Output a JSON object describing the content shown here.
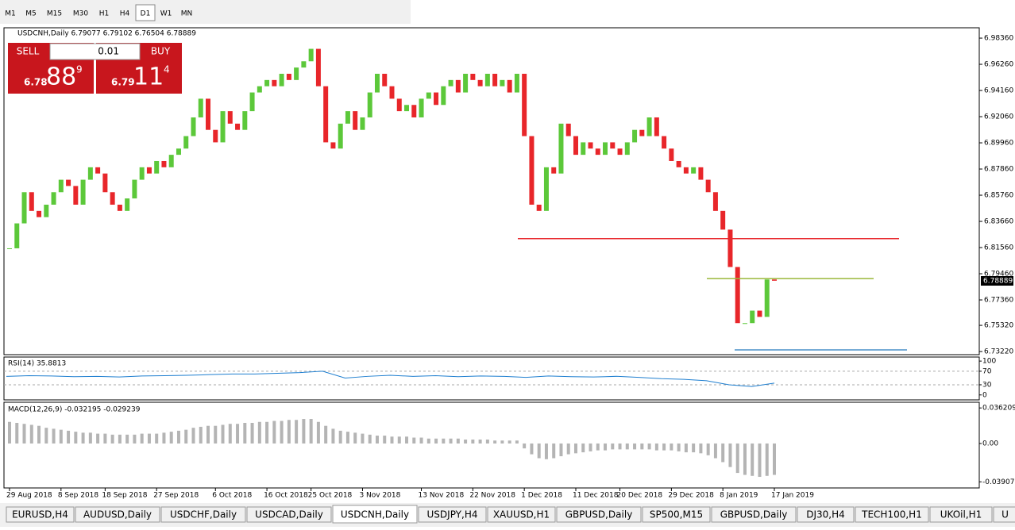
{
  "toolbar": {
    "timeframes": [
      "M1",
      "M5",
      "M15",
      "M30",
      "H1",
      "H4",
      "D1",
      "W1",
      "MN"
    ],
    "active": 6
  },
  "trade_panel": {
    "sell": "SELL",
    "buy": "BUY",
    "lot": "0.01",
    "bid_big": "6.78",
    "bid_pips": "88",
    "bid_frac": "9",
    "ask_big": "6.79",
    "ask_pips": "11",
    "ask_frac": "4"
  },
  "chart_data": {
    "type": "candlestick",
    "header": "USDCNH,Daily  6.79077 6.79102 6.76504 6.78889",
    "up_color": "#5cc83a",
    "down_color": "#e8262a",
    "closes": [
      6.815,
      6.835,
      6.86,
      6.845,
      6.84,
      6.85,
      6.86,
      6.87,
      6.865,
      6.85,
      6.87,
      6.88,
      6.875,
      6.86,
      6.85,
      6.845,
      6.855,
      6.87,
      6.88,
      6.875,
      6.885,
      6.88,
      6.89,
      6.895,
      6.905,
      6.92,
      6.935,
      6.91,
      6.9,
      6.925,
      6.915,
      6.91,
      6.925,
      6.94,
      6.945,
      6.95,
      6.945,
      6.955,
      6.95,
      6.96,
      6.965,
      6.975,
      6.945,
      6.9,
      6.895,
      6.915,
      6.925,
      6.91,
      6.92,
      6.94,
      6.955,
      6.945,
      6.935,
      6.925,
      6.93,
      6.92,
      6.935,
      6.94,
      6.93,
      6.945,
      6.95,
      6.94,
      6.955,
      6.95,
      6.945,
      6.955,
      6.945,
      6.95,
      6.94,
      6.955,
      6.905,
      6.85,
      6.845,
      6.88,
      6.875,
      6.915,
      6.905,
      6.89,
      6.9,
      6.895,
      6.89,
      6.9,
      6.895,
      6.89,
      6.9,
      6.91,
      6.905,
      6.92,
      6.905,
      6.895,
      6.885,
      6.88,
      6.875,
      6.88,
      6.87,
      6.86,
      6.845,
      6.83,
      6.8,
      6.755,
      6.755,
      6.765,
      6.76,
      6.79,
      6.789
    ],
    "ylim": [
      6.7297,
      6.9919
    ],
    "yticks": [
      {
        "value": 6.9836,
        "label": "6.98360"
      },
      {
        "value": 6.9626,
        "label": "6.96260"
      },
      {
        "value": 6.9416,
        "label": "6.94160"
      },
      {
        "value": 6.9206,
        "label": "6.92060"
      },
      {
        "value": 6.8996,
        "label": "6.89960"
      },
      {
        "value": 6.8786,
        "label": "6.87860"
      },
      {
        "value": 6.8576,
        "label": "6.85760"
      },
      {
        "value": 6.8366,
        "label": "6.83660"
      },
      {
        "value": 6.8156,
        "label": "6.81560"
      },
      {
        "value": 6.7946,
        "label": "6.79460"
      },
      {
        "value": 6.7736,
        "label": "6.77360"
      },
      {
        "value": 6.7532,
        "label": "6.75320"
      },
      {
        "value": 6.7322,
        "label": "6.73220"
      }
    ],
    "xticks": [
      {
        "value": 0,
        "label": "29 Aug 2018"
      },
      {
        "value": 7,
        "label": "8 Sep 2018"
      },
      {
        "value": 13,
        "label": "18 Sep 2018"
      },
      {
        "value": 20,
        "label": "27 Sep 2018"
      },
      {
        "value": 28,
        "label": "6 Oct 2018"
      },
      {
        "value": 35,
        "label": "16 Oct 2018"
      },
      {
        "value": 41,
        "label": "25 Oct 2018"
      },
      {
        "value": 48,
        "label": "3 Nov 2018"
      },
      {
        "value": 56,
        "label": "13 Nov 2018"
      },
      {
        "value": 63,
        "label": "22 Nov 2018"
      },
      {
        "value": 70,
        "label": "1 Dec 2018"
      },
      {
        "value": 77,
        "label": "11 Dec 2018"
      },
      {
        "value": 83,
        "label": "20 Dec 2018"
      },
      {
        "value": 90,
        "label": "29 Dec 2018"
      },
      {
        "value": 97,
        "label": "8 Jan 2019"
      },
      {
        "value": 104,
        "label": "17 Jan 2019"
      }
    ],
    "levels": [
      {
        "value": 6.8228,
        "color": "#e8262a"
      },
      {
        "value": 6.7907,
        "color": "#9ab83a"
      },
      {
        "value": 6.7335,
        "color": "#4a90c8"
      }
    ],
    "last_price": 6.78889,
    "rsi": {
      "header": "RSI(14) 35.8813",
      "color": "#1f7fd0",
      "values": [
        55,
        57,
        56,
        54,
        55,
        53,
        56,
        57,
        58,
        60,
        62,
        62,
        64,
        66,
        70,
        50,
        55,
        58,
        55,
        57,
        54,
        56,
        55,
        52,
        56,
        54,
        53,
        55,
        52,
        48,
        46,
        42,
        30,
        25,
        35
      ],
      "ylim": [
        -14.6,
        112
      ],
      "yticks": [
        100,
        70,
        30,
        0
      ],
      "levels": [
        70,
        30
      ]
    },
    "macd": {
      "header": "MACD(12,26,9) -0.032195 -0.029239",
      "color": "#b4b4b4",
      "values": [
        0.022,
        0.021,
        0.02,
        0.019,
        0.018,
        0.016,
        0.015,
        0.014,
        0.013,
        0.012,
        0.011,
        0.011,
        0.01,
        0.01,
        0.009,
        0.009,
        0.009,
        0.009,
        0.01,
        0.01,
        0.01,
        0.011,
        0.012,
        0.013,
        0.014,
        0.016,
        0.017,
        0.018,
        0.018,
        0.019,
        0.02,
        0.02,
        0.021,
        0.021,
        0.022,
        0.022,
        0.023,
        0.023,
        0.024,
        0.024,
        0.025,
        0.025,
        0.022,
        0.018,
        0.015,
        0.013,
        0.012,
        0.011,
        0.01,
        0.009,
        0.008,
        0.008,
        0.007,
        0.007,
        0.007,
        0.006,
        0.006,
        0.005,
        0.005,
        0.005,
        0.005,
        0.005,
        0.004,
        0.004,
        0.004,
        0.004,
        0.003,
        0.003,
        0.003,
        0.003,
        -0.005,
        -0.011,
        -0.015,
        -0.016,
        -0.015,
        -0.013,
        -0.011,
        -0.01,
        -0.009,
        -0.008,
        -0.007,
        -0.007,
        -0.006,
        -0.006,
        -0.006,
        -0.006,
        -0.006,
        -0.006,
        -0.007,
        -0.007,
        -0.007,
        -0.008,
        -0.009,
        -0.009,
        -0.01,
        -0.012,
        -0.015,
        -0.019,
        -0.024,
        -0.03,
        -0.032,
        -0.033,
        -0.034,
        -0.033,
        -0.032
      ],
      "ylim": [
        -0.0453,
        0.042
      ],
      "yticks": [
        0.036209,
        {
          "value": 0,
          "label": "0.00"
        },
        -0.03907
      ]
    }
  },
  "tabs": [
    "EURUSD,H4",
    "AUDUSD,Daily",
    "USDCHF,Daily",
    "USDCAD,Daily",
    "USDCNH,Daily",
    "USDJPY,H4",
    "XAUUSD,H1",
    "GBPUSD,Daily",
    "SP500,M15",
    "GBPUSD,Daily",
    "DJ30,H4",
    "TECH100,H1",
    "UKOil,H1",
    "U"
  ],
  "active_tab": 4
}
